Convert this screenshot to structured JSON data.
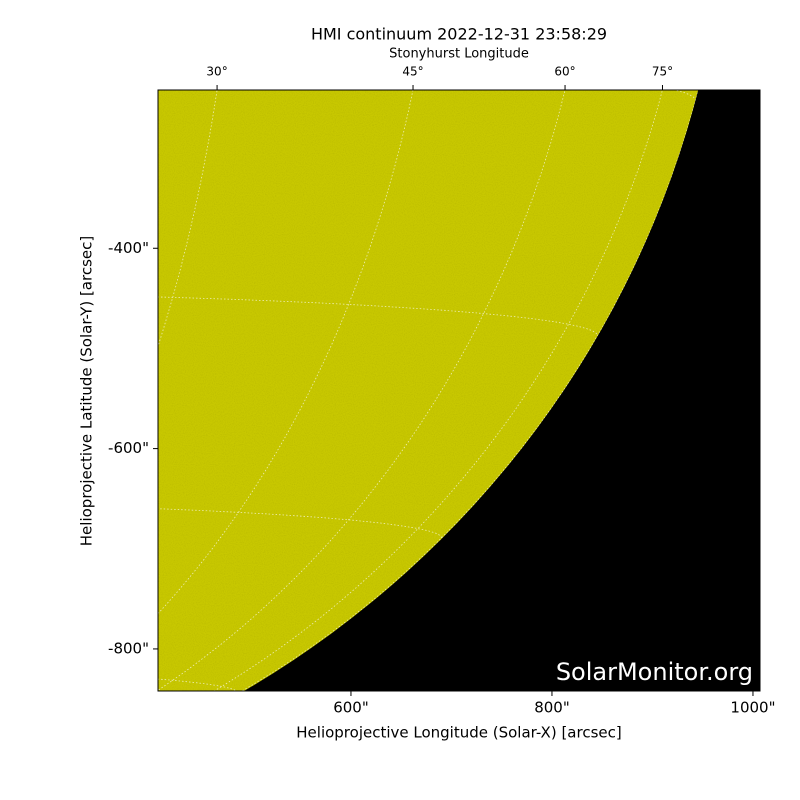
{
  "chart_data": {
    "type": "image",
    "title": "HMI continuum 2022-12-31 23:58:29",
    "top_axis_label": "Stonyhurst Longitude",
    "xlabel": "Helioprojective Longitude (Solar-X) [arcsec]",
    "ylabel": "Helioprojective Latitude (Solar-Y) [arcsec]",
    "xlim": [
      408,
      1007
    ],
    "ylim": [
      -842,
      -242
    ],
    "xticks": [
      {
        "value": 600,
        "label": "600\""
      },
      {
        "value": 800,
        "label": "800\""
      },
      {
        "value": 1000,
        "label": "1000\""
      }
    ],
    "yticks": [
      {
        "value": -400,
        "label": "-400\""
      },
      {
        "value": -600,
        "label": "-600\""
      },
      {
        "value": -800,
        "label": "-800\""
      }
    ],
    "top_ticks": [
      {
        "value": 30,
        "label": "30°"
      },
      {
        "value": 45,
        "label": "45°"
      },
      {
        "value": 60,
        "label": "60°"
      },
      {
        "value": 75,
        "label": "75°"
      }
    ],
    "watermark": "SolarMonitor.org",
    "color": "#c8c800"
  }
}
